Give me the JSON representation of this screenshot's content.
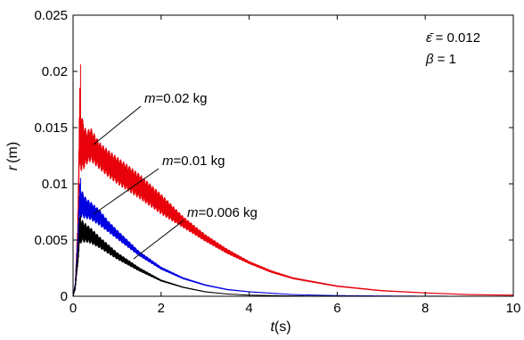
{
  "chart_data": {
    "type": "line",
    "title": "",
    "xlabel": {
      "var": "t",
      "unit": "(s)"
    },
    "ylabel": {
      "var": "r",
      "unit": "(m)"
    },
    "xlim": [
      0,
      10
    ],
    "ylim": [
      0,
      0.025
    ],
    "xticks": [
      0,
      2,
      4,
      6,
      8,
      10
    ],
    "xtick_labels": [
      "0",
      "2",
      "4",
      "6",
      "8",
      "10"
    ],
    "yticks": [
      0,
      0.005,
      0.01,
      0.015,
      0.02,
      0.025
    ],
    "ytick_labels": [
      "0",
      "0.005",
      "0.01",
      "0.015",
      "0.02",
      "0.025"
    ],
    "grid": false,
    "legend": "none",
    "parameters": {
      "eps_symbol": "ε̄",
      "eps_value": "= 0.012",
      "beta_symbol": "β",
      "beta_value": "= 1"
    },
    "series": [
      {
        "name": "m=0.02 kg",
        "label_var": "m",
        "label_value": "=0.02 kg",
        "color": "#e8000b",
        "peak": 0.0206,
        "x": [
          0.0,
          0.05,
          0.1,
          0.15,
          0.2,
          0.3,
          0.4,
          0.6,
          0.8,
          1.0,
          1.5,
          2.0,
          2.5,
          3.0,
          3.5,
          4.0,
          4.5,
          5.0,
          6.0,
          7.0,
          8.0,
          9.0,
          10.0
        ],
        "y": [
          0.0,
          0.001,
          0.005,
          0.015,
          0.0135,
          0.0132,
          0.0135,
          0.0125,
          0.0118,
          0.0112,
          0.0098,
          0.0082,
          0.0066,
          0.0052,
          0.004,
          0.003,
          0.0022,
          0.0016,
          0.0009,
          0.0005,
          0.0003,
          0.00015,
          0.0001
        ],
        "oscillation_amplitude": [
          0,
          0.0003,
          0.001,
          0.0035,
          0.0025,
          0.0015,
          0.0015,
          0.0012,
          0.0012,
          0.0012,
          0.0011,
          0.0009,
          0.0005,
          0.0003,
          0.0002,
          0.0001,
          8e-05,
          5e-05,
          3e-05,
          2e-05,
          1e-05,
          1e-05,
          1e-05
        ]
      },
      {
        "name": "m=0.01 kg",
        "label_var": "m",
        "label_value": "=0.01 kg",
        "color": "#0000e0",
        "peak": 0.0105,
        "x": [
          0.0,
          0.05,
          0.1,
          0.15,
          0.2,
          0.3,
          0.4,
          0.6,
          0.8,
          1.0,
          1.5,
          2.0,
          2.5,
          3.0,
          3.5,
          4.0,
          5.0,
          6.0,
          7.0,
          8.0,
          9.0,
          10.0
        ],
        "y": [
          0.0,
          0.001,
          0.004,
          0.0085,
          0.0082,
          0.0078,
          0.0076,
          0.007,
          0.0062,
          0.0055,
          0.0038,
          0.0025,
          0.0016,
          0.001,
          0.0006,
          0.0004,
          0.00015,
          6e-05,
          3e-05,
          1e-05,
          0.0,
          0.0
        ],
        "oscillation_amplitude": [
          0,
          0.0002,
          0.0008,
          0.0015,
          0.0012,
          0.0009,
          0.0008,
          0.0007,
          0.0005,
          0.0004,
          0.0002,
          0.0001,
          5e-05,
          3e-05,
          2e-05,
          1e-05,
          0,
          0,
          0,
          0,
          0,
          0
        ]
      },
      {
        "name": "m=0.006 kg",
        "label_var": "m",
        "label_value": "=0.006 kg",
        "color": "#000000",
        "peak": 0.0071,
        "x": [
          0.0,
          0.05,
          0.1,
          0.15,
          0.2,
          0.3,
          0.4,
          0.6,
          0.8,
          1.0,
          1.5,
          2.0,
          2.5,
          3.0,
          3.5,
          4.0,
          5.0,
          6.0,
          7.0,
          8.0,
          9.0,
          10.0
        ],
        "y": [
          0.0,
          0.0008,
          0.003,
          0.0058,
          0.0058,
          0.0056,
          0.0054,
          0.0048,
          0.0042,
          0.0036,
          0.0024,
          0.0014,
          0.0008,
          0.0004,
          0.0002,
          0.0001,
          3e-05,
          1e-05,
          0.0,
          0.0,
          0.0,
          0.0
        ],
        "oscillation_amplitude": [
          0,
          0.0002,
          0.0006,
          0.0012,
          0.001,
          0.0008,
          0.0007,
          0.0005,
          0.0004,
          0.0003,
          0.00015,
          5e-05,
          2e-05,
          1e-05,
          0,
          0,
          0,
          0,
          0,
          0,
          0,
          0
        ]
      }
    ]
  }
}
